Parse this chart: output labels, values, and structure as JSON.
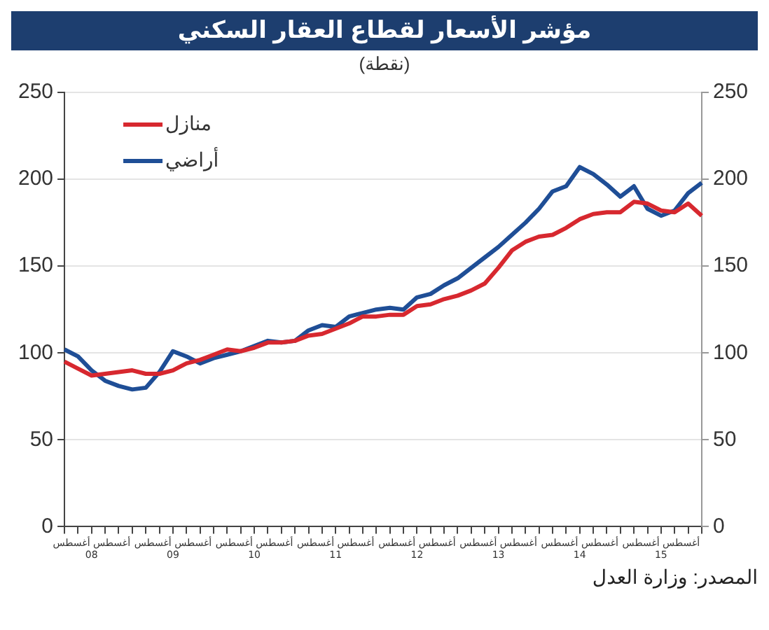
{
  "chart_data": {
    "type": "line",
    "title": "مؤشر الأسعار لقطاع العقار السكني",
    "subtitle": "(نقطة)",
    "categories": [
      null,
      null,
      "أغسطس أغسطس\n08",
      null,
      null,
      null,
      null,
      null,
      "أغسطس أغسطس\n09",
      null,
      null,
      null,
      null,
      null,
      "أغسطس أغسطس\n10",
      null,
      null,
      null,
      null,
      null,
      "أغسطس أغسطس\n11",
      null,
      null,
      null,
      null,
      null,
      "أغسطس أغسطس\n12",
      null,
      null,
      null,
      null,
      null,
      "أغسطس أغسطس\n13",
      null,
      null,
      null,
      null,
      null,
      "أغسطس أغسطس\n14",
      null,
      null,
      null,
      null,
      null,
      "أغسطس أغسطس\n15",
      null,
      null,
      null
    ],
    "series": [
      {
        "name": "منازل",
        "color": "#d7282f",
        "values": [
          95,
          91,
          87,
          88,
          89,
          90,
          88,
          88,
          90,
          94,
          96,
          99,
          102,
          101,
          103,
          106,
          106,
          107,
          110,
          111,
          114,
          117,
          121,
          121,
          122,
          122,
          127,
          128,
          131,
          133,
          136,
          140,
          149,
          159,
          164,
          167,
          168,
          172,
          177,
          180,
          181,
          181,
          187,
          186,
          182,
          181,
          186,
          179
        ]
      },
      {
        "name": "أراضي",
        "color": "#1f4e96",
        "values": [
          102,
          98,
          90,
          84,
          81,
          79,
          80,
          89,
          101,
          98,
          94,
          97,
          99,
          101,
          104,
          107,
          106,
          107,
          113,
          116,
          115,
          121,
          123,
          125,
          126,
          125,
          132,
          134,
          139,
          143,
          149,
          155,
          161,
          168,
          175,
          183,
          193,
          196,
          207,
          203,
          197,
          190,
          196,
          183,
          179,
          182,
          192,
          198
        ]
      }
    ],
    "ylim": [
      0,
      250
    ],
    "yticks": [
      0,
      50,
      100,
      150,
      200,
      250
    ],
    "y2lim": [
      0,
      250
    ],
    "y2ticks": [
      0,
      50,
      100,
      150,
      200,
      250
    ],
    "grid": "y",
    "legend": "top left",
    "marker": "none",
    "line_style": "solid",
    "annotations": [
      "المصدر: وزارة العدل"
    ]
  }
}
